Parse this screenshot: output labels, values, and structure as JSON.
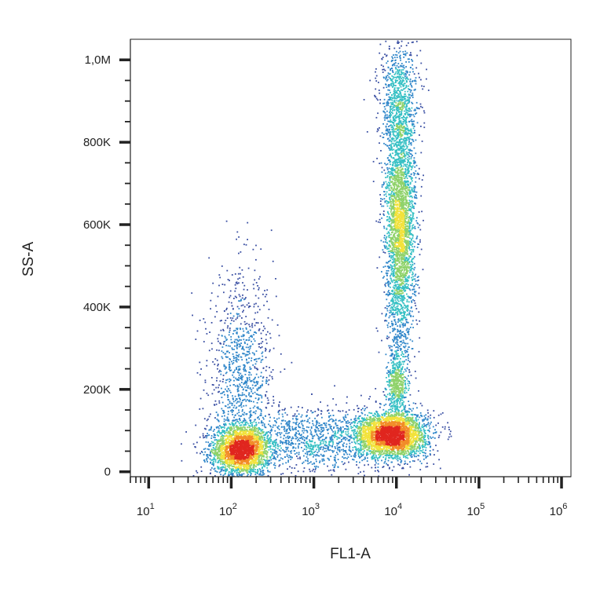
{
  "chart_data": {
    "type": "scatter",
    "title": "",
    "xlabel": "FL1-A",
    "ylabel": "SS-A",
    "xscale": "log",
    "yscale": "linear",
    "xlim": [
      6,
      1300000
    ],
    "ylim": [
      -12000,
      1050000
    ],
    "x_ticks": [
      {
        "base": "10",
        "exp": "1",
        "value": 10
      },
      {
        "base": "10",
        "exp": "2",
        "value": 100
      },
      {
        "base": "10",
        "exp": "3",
        "value": 1000
      },
      {
        "base": "10",
        "exp": "4",
        "value": 10000
      },
      {
        "base": "10",
        "exp": "5",
        "value": 100000
      },
      {
        "base": "10",
        "exp": "6",
        "value": 1000000
      }
    ],
    "y_ticks": [
      {
        "label": "0",
        "value": 0
      },
      {
        "label": "200K",
        "value": 200000
      },
      {
        "label": "400K",
        "value": 400000
      },
      {
        "label": "600K",
        "value": 600000
      },
      {
        "label": "800K",
        "value": 800000
      },
      {
        "label": "1,0M",
        "value": 1000000
      }
    ],
    "grid": false,
    "legend": "none",
    "density_colormap": [
      "#3a4fa3",
      "#2f86c9",
      "#36c0c4",
      "#8fd26a",
      "#f2e23a",
      "#f28c28",
      "#e0261f"
    ],
    "populations": [
      {
        "x_center": 130,
        "x_spread_decades": 0.18,
        "y_center": 55000,
        "y_spread": 30000,
        "points": 2600
      },
      {
        "x_center": 130,
        "x_spread_decades": 0.2,
        "y_center": 220000,
        "y_spread": 130000,
        "points": 1100
      },
      {
        "x_center": 8500,
        "x_spread_decades": 0.22,
        "y_center": 90000,
        "y_spread": 28000,
        "points": 3200
      },
      {
        "x_center": 11000,
        "x_spread_decades": 0.09,
        "y_center": 600000,
        "y_spread": 160000,
        "points": 3200
      },
      {
        "x_center": 10000,
        "x_spread_decades": 0.06,
        "y_center": 210000,
        "y_spread": 40000,
        "points": 500
      },
      {
        "x_center": 10500,
        "x_spread_decades": 0.12,
        "y_center": 900000,
        "y_spread": 70000,
        "points": 700
      },
      {
        "x_center": 1000,
        "x_spread_decades": 0.35,
        "y_center": 80000,
        "y_spread": 40000,
        "points": 900
      }
    ]
  }
}
